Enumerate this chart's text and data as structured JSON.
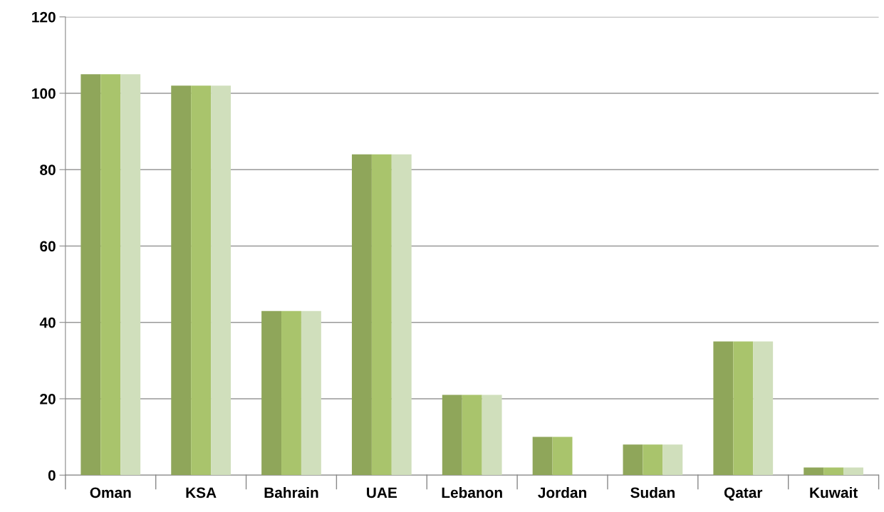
{
  "chart_data": {
    "type": "bar",
    "categories": [
      "Oman",
      "KSA",
      "Bahrain",
      "UAE",
      "Lebanon",
      "Jordan",
      "Sudan",
      "Qatar",
      "Kuwait"
    ],
    "series": [
      {
        "color": "#8fa65a",
        "values": [
          105,
          102,
          43,
          84,
          21,
          10,
          8,
          35,
          2
        ]
      },
      {
        "color": "#a9c46c",
        "values": [
          105,
          102,
          43,
          84,
          21,
          10,
          8,
          35,
          2
        ]
      },
      {
        "color": "#d0dfbc",
        "values": [
          105,
          102,
          43,
          84,
          21,
          null,
          8,
          35,
          2
        ]
      }
    ],
    "ylim": [
      0,
      120
    ],
    "yticks": [
      0,
      20,
      40,
      60,
      80,
      100,
      120
    ],
    "grid": "y",
    "legend": false
  }
}
